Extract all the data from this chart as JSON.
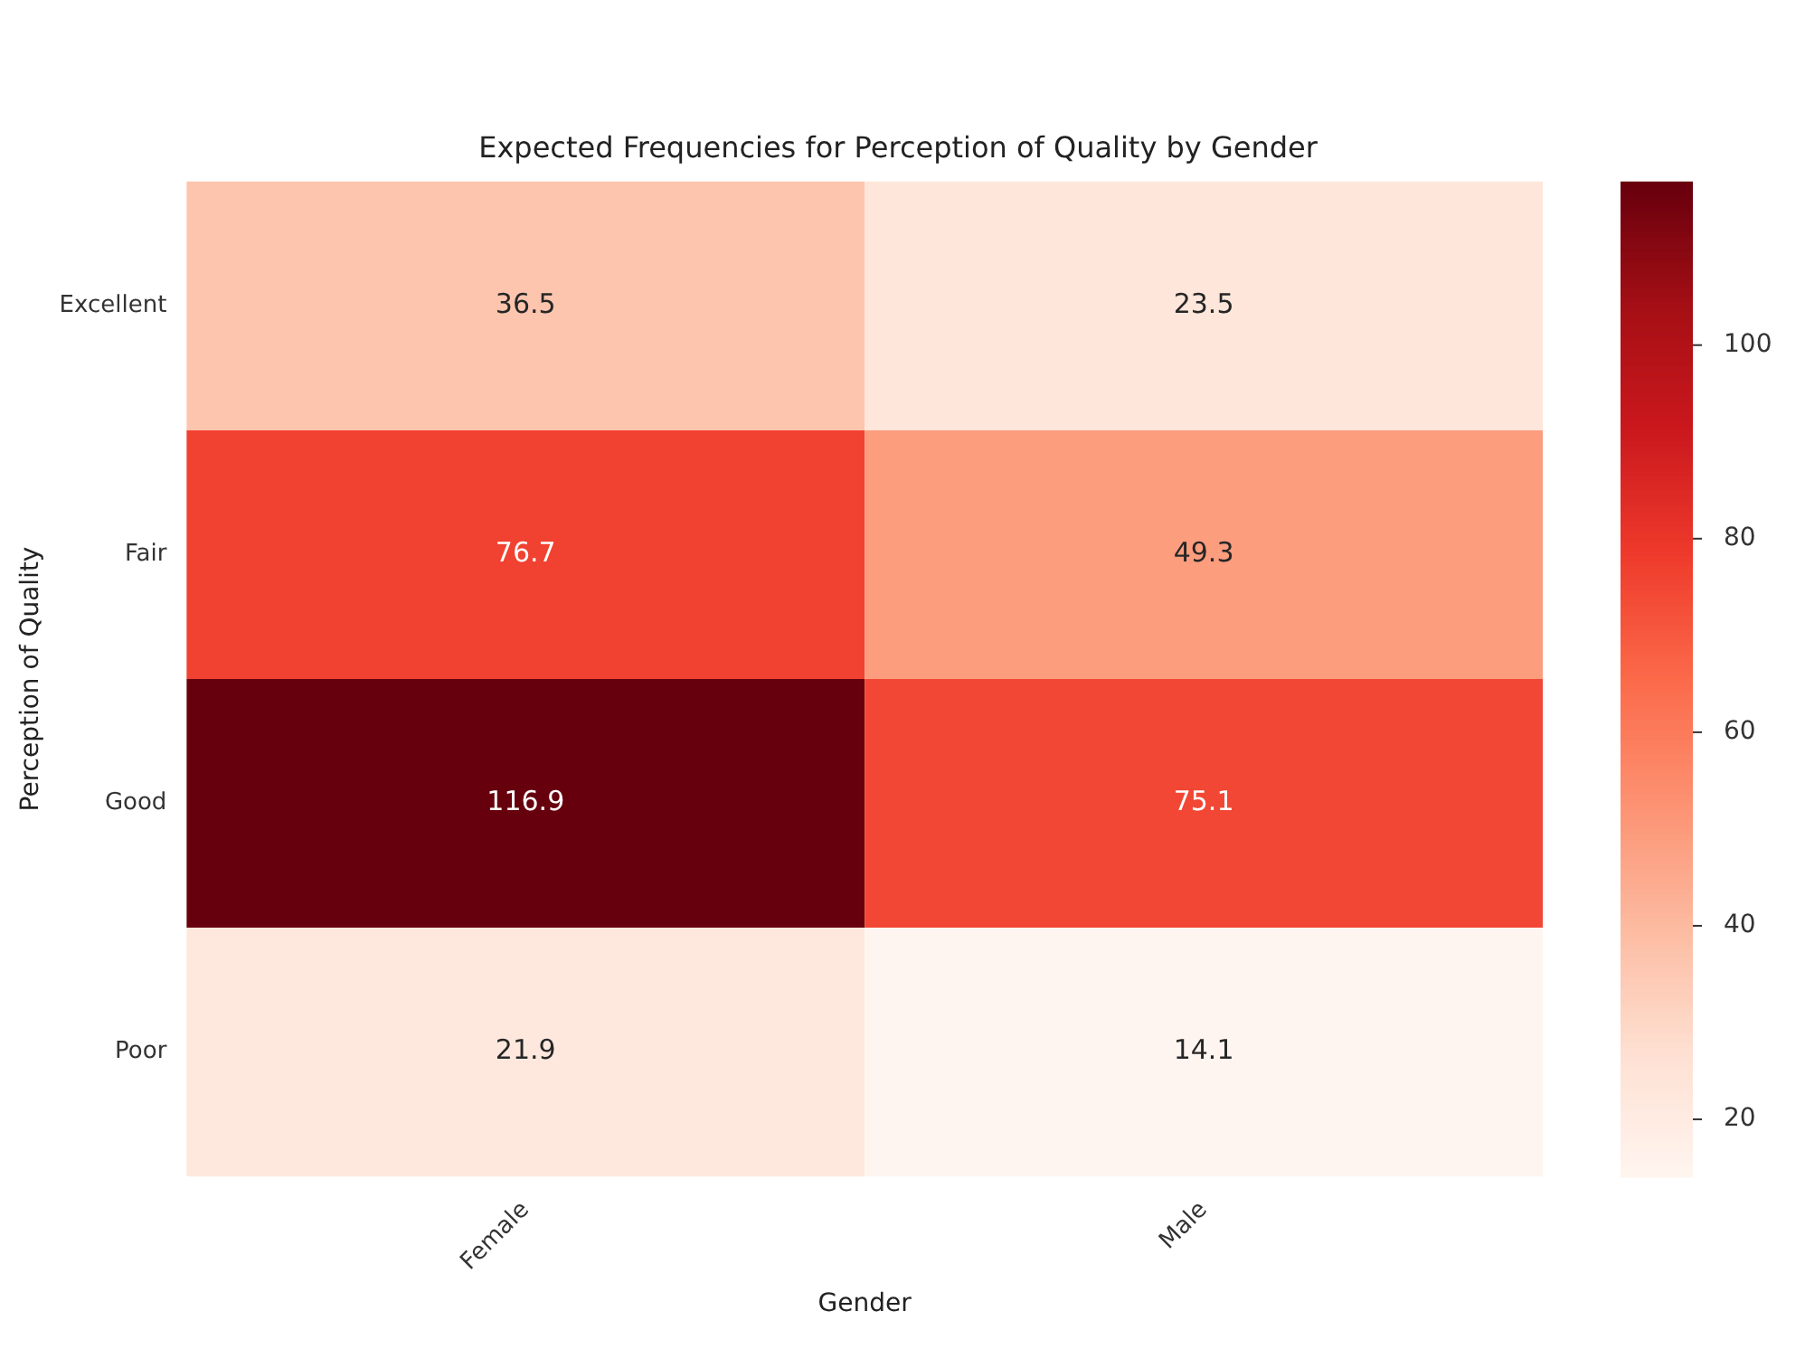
{
  "chart_data": {
    "type": "heatmap",
    "title": "Expected Frequencies for Perception of Quality by Gender",
    "xlabel": "Gender",
    "ylabel": "Perception of Quality",
    "categories": [
      "Female",
      "Male"
    ],
    "y_categories": [
      "Excellent",
      "Fair",
      "Good",
      "Poor"
    ],
    "cells": [
      [
        36.5,
        23.5
      ],
      [
        76.7,
        49.3
      ],
      [
        116.9,
        75.1
      ],
      [
        21.9,
        14.1
      ]
    ],
    "clim": [
      14.1,
      116.9
    ],
    "cticks": [
      20,
      40,
      60,
      80,
      100
    ],
    "data_labels": true
  }
}
